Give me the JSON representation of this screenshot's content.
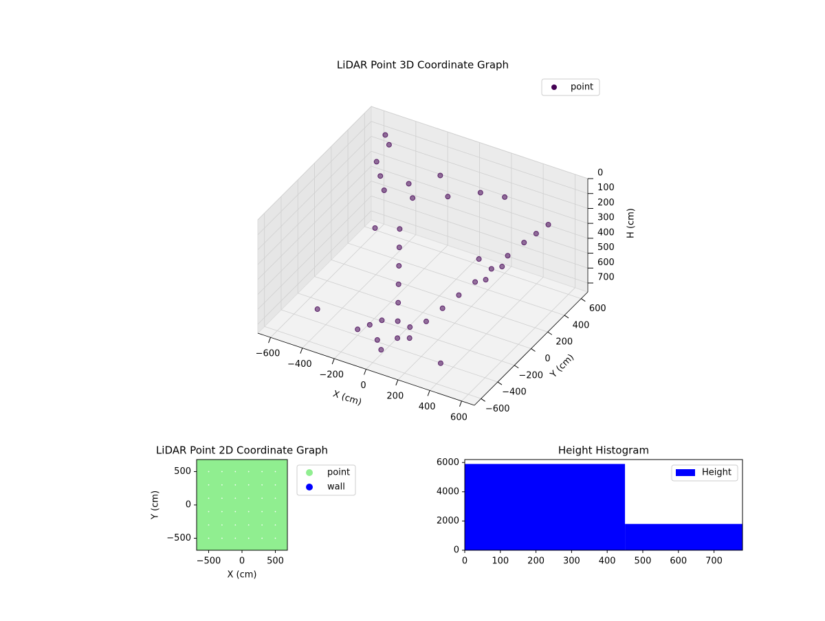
{
  "chart_data": [
    {
      "type": "scatter3d",
      "title": "LiDAR Point 3D Coordinate Graph",
      "xlabel": "X (cm)",
      "ylabel": "Y (cm)",
      "zlabel": "H (cm)",
      "xlim": [
        -680,
        680
      ],
      "ylim": [
        -680,
        680
      ],
      "zlim": [
        0,
        760
      ],
      "zinverted": true,
      "grid": true,
      "legend": "upper right",
      "xticks": [
        {
          "value": -600,
          "label": "−600"
        },
        {
          "value": -400,
          "label": "−400"
        },
        {
          "value": -200,
          "label": "−200"
        },
        0,
        200,
        400,
        600
      ],
      "yticks": [
        {
          "value": -600,
          "label": "−600"
        },
        {
          "value": -400,
          "label": "−400"
        },
        {
          "value": -200,
          "label": "−200"
        },
        0,
        200,
        400,
        600
      ],
      "zticks": [
        0,
        100,
        200,
        300,
        400,
        500,
        600,
        700
      ],
      "series": [
        {
          "name": "point",
          "color": "#440154",
          "x": [
            -500,
            -450,
            -400,
            -350,
            -300,
            -250,
            -200,
            -150,
            -100,
            -50,
            0,
            50,
            100,
            150,
            200,
            250,
            300,
            350,
            400,
            450,
            500,
            -200,
            -150,
            -100,
            -50,
            0,
            50,
            100,
            -550,
            -500,
            500,
            550,
            -300,
            300,
            0,
            -100,
            100,
            200,
            -400,
            400
          ],
          "y": [
            400,
            350,
            300,
            500,
            450,
            200,
            100,
            0,
            -100,
            -200,
            -300,
            -250,
            -150,
            -50,
            50,
            150,
            250,
            350,
            450,
            500,
            550,
            -400,
            -350,
            -300,
            -450,
            -500,
            -400,
            -350,
            600,
            550,
            -200,
            -100,
            0,
            100,
            300,
            400,
            500,
            600,
            -500,
            -550
          ],
          "z": [
            150,
            200,
            250,
            300,
            350,
            400,
            450,
            500,
            550,
            600,
            650,
            700,
            700,
            650,
            600,
            550,
            500,
            450,
            400,
            350,
            300,
            720,
            700,
            680,
            710,
            730,
            690,
            700,
            100,
            120,
            250,
            200,
            300,
            350,
            150,
            100,
            200,
            250,
            600,
            650
          ]
        }
      ]
    },
    {
      "type": "scatter",
      "title": "LiDAR Point 2D Coordinate Graph",
      "xlabel": "X (cm)",
      "ylabel": "Y (cm)",
      "xlim": [
        -680,
        680
      ],
      "ylim": [
        -680,
        680
      ],
      "legend": "outside right",
      "xticks": [
        {
          "value": -500,
          "label": "−500"
        },
        0,
        500
      ],
      "yticks": [
        {
          "value": -500,
          "label": "−500"
        },
        0,
        500
      ],
      "series": [
        {
          "name": "point",
          "color": "#90ee90",
          "x": [
            -600,
            -400,
            -200,
            0,
            200,
            400,
            600,
            -600,
            -400,
            -200,
            0,
            200,
            400,
            600,
            -600,
            -400,
            -200,
            0,
            200,
            400,
            600,
            -600,
            -400,
            -200,
            0,
            200,
            400,
            600,
            -600,
            -400,
            -200,
            0,
            200,
            400,
            600,
            -600,
            -400,
            -200,
            0,
            200,
            400,
            600,
            -600,
            -400,
            -200,
            0,
            200,
            400,
            600
          ],
          "y": [
            -600,
            -600,
            -600,
            -600,
            -600,
            -600,
            -600,
            -400,
            -400,
            -400,
            -400,
            -400,
            -400,
            -400,
            -200,
            -200,
            -200,
            -200,
            -200,
            -200,
            -200,
            0,
            0,
            0,
            0,
            0,
            0,
            0,
            200,
            200,
            200,
            200,
            200,
            200,
            200,
            400,
            400,
            400,
            400,
            400,
            400,
            400,
            600,
            600,
            600,
            600,
            600,
            600,
            600
          ]
        },
        {
          "name": "wall",
          "color": "#0000ff",
          "x": [],
          "y": []
        }
      ]
    },
    {
      "type": "histogram",
      "title": "Height Histogram",
      "bins": [
        0,
        450,
        780
      ],
      "xlim": [
        0,
        780
      ],
      "ylim": [
        0,
        6200
      ],
      "xticks": [
        0,
        100,
        200,
        300,
        400,
        500,
        600,
        700
      ],
      "yticks": [
        0,
        2000,
        4000,
        6000
      ],
      "legend": "upper right",
      "series": [
        {
          "name": "Height",
          "color": "#0000ff",
          "values": [
            5900,
            1800
          ]
        }
      ]
    }
  ]
}
